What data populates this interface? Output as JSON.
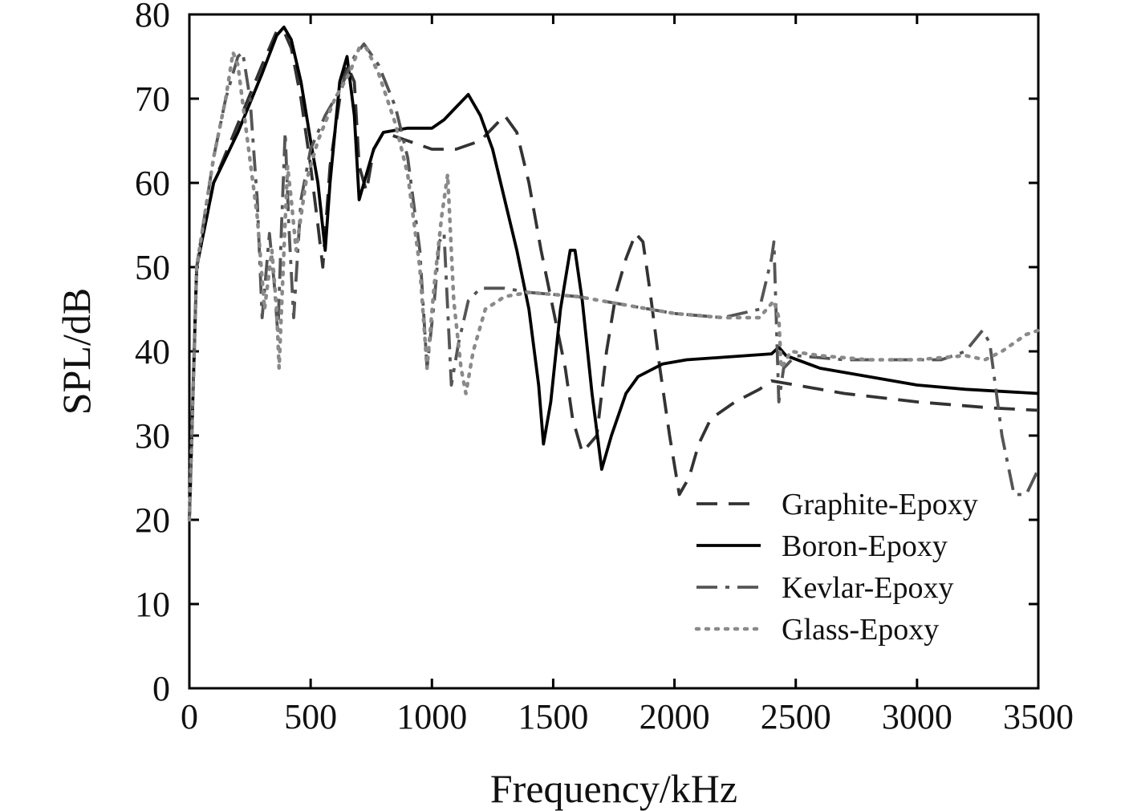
{
  "chart_data": {
    "type": "line",
    "title": "",
    "xlabel": "Frequency/kHz",
    "ylabel": "SPL/dB",
    "xlim": [
      0,
      3500
    ],
    "ylim": [
      0,
      80
    ],
    "xticks": [
      0,
      500,
      1000,
      1500,
      2000,
      2500,
      3000,
      3500
    ],
    "yticks": [
      0,
      10,
      20,
      30,
      40,
      50,
      60,
      70,
      80
    ],
    "grid": false,
    "legend_position": "bottom-right",
    "series": [
      {
        "name": "Graphite-Epoxy",
        "style": "dashed",
        "color": "#333333",
        "points": [
          [
            0,
            20
          ],
          [
            30,
            50
          ],
          [
            100,
            60
          ],
          [
            200,
            67
          ],
          [
            300,
            74
          ],
          [
            360,
            78
          ],
          [
            390,
            78
          ],
          [
            420,
            76
          ],
          [
            460,
            70
          ],
          [
            500,
            62
          ],
          [
            530,
            55
          ],
          [
            550,
            50
          ],
          [
            580,
            62
          ],
          [
            620,
            70
          ],
          [
            650,
            74
          ],
          [
            680,
            72
          ],
          [
            700,
            62
          ],
          [
            730,
            59
          ],
          [
            760,
            64
          ],
          [
            800,
            66
          ],
          [
            900,
            65
          ],
          [
            1000,
            64
          ],
          [
            1100,
            64
          ],
          [
            1200,
            65
          ],
          [
            1300,
            68
          ],
          [
            1350,
            66
          ],
          [
            1400,
            60
          ],
          [
            1450,
            52
          ],
          [
            1500,
            45
          ],
          [
            1550,
            38
          ],
          [
            1580,
            32
          ],
          [
            1620,
            28
          ],
          [
            1680,
            30
          ],
          [
            1720,
            40
          ],
          [
            1760,
            47
          ],
          [
            1800,
            51
          ],
          [
            1840,
            54
          ],
          [
            1870,
            53
          ],
          [
            1900,
            47
          ],
          [
            1940,
            38
          ],
          [
            1980,
            30
          ],
          [
            2020,
            23
          ],
          [
            2060,
            25
          ],
          [
            2100,
            29
          ],
          [
            2150,
            32
          ],
          [
            2250,
            34
          ],
          [
            2350,
            35.5
          ],
          [
            2400,
            36.5
          ],
          [
            2500,
            36
          ],
          [
            2700,
            35
          ],
          [
            3000,
            34
          ],
          [
            3300,
            33.3
          ],
          [
            3500,
            33
          ]
        ]
      },
      {
        "name": "Boron-Epoxy",
        "style": "solid",
        "color": "#000000",
        "points": [
          [
            0,
            20
          ],
          [
            30,
            50
          ],
          [
            100,
            60
          ],
          [
            200,
            66
          ],
          [
            300,
            73
          ],
          [
            360,
            77.5
          ],
          [
            390,
            78.5
          ],
          [
            420,
            77
          ],
          [
            460,
            72
          ],
          [
            500,
            65
          ],
          [
            530,
            60
          ],
          [
            560,
            52
          ],
          [
            580,
            60
          ],
          [
            620,
            72
          ],
          [
            650,
            75
          ],
          [
            680,
            68
          ],
          [
            700,
            58
          ],
          [
            720,
            60
          ],
          [
            760,
            64
          ],
          [
            800,
            66
          ],
          [
            900,
            66.5
          ],
          [
            1000,
            66.5
          ],
          [
            1050,
            67.5
          ],
          [
            1100,
            69
          ],
          [
            1150,
            70.5
          ],
          [
            1200,
            68
          ],
          [
            1250,
            64
          ],
          [
            1300,
            58
          ],
          [
            1350,
            52
          ],
          [
            1400,
            45
          ],
          [
            1440,
            36
          ],
          [
            1460,
            29
          ],
          [
            1490,
            34
          ],
          [
            1530,
            45
          ],
          [
            1570,
            52
          ],
          [
            1590,
            52
          ],
          [
            1620,
            46
          ],
          [
            1660,
            35
          ],
          [
            1700,
            26
          ],
          [
            1740,
            30
          ],
          [
            1800,
            35
          ],
          [
            1850,
            37
          ],
          [
            1950,
            38.5
          ],
          [
            2050,
            39
          ],
          [
            2200,
            39.3
          ],
          [
            2400,
            39.7
          ],
          [
            2430,
            40.5
          ],
          [
            2460,
            39.5
          ],
          [
            2600,
            38
          ],
          [
            2800,
            37
          ],
          [
            3000,
            36
          ],
          [
            3200,
            35.5
          ],
          [
            3500,
            35
          ]
        ]
      },
      {
        "name": "Kevlar-Epoxy",
        "style": "dash-dot",
        "color": "#555555",
        "points": [
          [
            0,
            20
          ],
          [
            30,
            50
          ],
          [
            100,
            63
          ],
          [
            150,
            70
          ],
          [
            200,
            75
          ],
          [
            220,
            75.5
          ],
          [
            250,
            70
          ],
          [
            280,
            58
          ],
          [
            300,
            44
          ],
          [
            330,
            54
          ],
          [
            350,
            48
          ],
          [
            365,
            42
          ],
          [
            380,
            55
          ],
          [
            395,
            66
          ],
          [
            410,
            55
          ],
          [
            430,
            44
          ],
          [
            460,
            58
          ],
          [
            500,
            64
          ],
          [
            560,
            68
          ],
          [
            620,
            71
          ],
          [
            680,
            75
          ],
          [
            720,
            76.5
          ],
          [
            780,
            74
          ],
          [
            850,
            69
          ],
          [
            900,
            63
          ],
          [
            950,
            52
          ],
          [
            980,
            38
          ],
          [
            1010,
            46
          ],
          [
            1030,
            53
          ],
          [
            1050,
            54
          ],
          [
            1080,
            36
          ],
          [
            1110,
            41
          ],
          [
            1150,
            46
          ],
          [
            1200,
            47.5
          ],
          [
            1300,
            47.5
          ],
          [
            1400,
            47
          ],
          [
            1600,
            46.5
          ],
          [
            1800,
            45.5
          ],
          [
            2000,
            44.5
          ],
          [
            2200,
            44
          ],
          [
            2350,
            45
          ],
          [
            2400,
            51
          ],
          [
            2410,
            53
          ],
          [
            2430,
            34
          ],
          [
            2450,
            38
          ],
          [
            2500,
            39.5
          ],
          [
            2700,
            39
          ],
          [
            2900,
            39
          ],
          [
            3100,
            39
          ],
          [
            3200,
            40
          ],
          [
            3270,
            42.5
          ],
          [
            3300,
            41
          ],
          [
            3350,
            30
          ],
          [
            3400,
            23
          ],
          [
            3450,
            23
          ],
          [
            3500,
            26
          ]
        ]
      },
      {
        "name": "Glass-Epoxy",
        "style": "dotted",
        "color": "#8a8a8a",
        "points": [
          [
            0,
            20
          ],
          [
            30,
            50
          ],
          [
            100,
            63
          ],
          [
            150,
            70
          ],
          [
            180,
            75.5
          ],
          [
            200,
            74
          ],
          [
            240,
            65
          ],
          [
            280,
            56
          ],
          [
            310,
            45
          ],
          [
            340,
            52
          ],
          [
            360,
            45
          ],
          [
            370,
            38
          ],
          [
            390,
            52
          ],
          [
            405,
            62
          ],
          [
            420,
            58
          ],
          [
            440,
            52
          ],
          [
            480,
            60
          ],
          [
            530,
            65
          ],
          [
            600,
            70
          ],
          [
            660,
            73
          ],
          [
            700,
            76
          ],
          [
            730,
            76
          ],
          [
            780,
            73
          ],
          [
            850,
            67
          ],
          [
            900,
            61
          ],
          [
            950,
            50
          ],
          [
            980,
            38
          ],
          [
            1010,
            48
          ],
          [
            1040,
            56
          ],
          [
            1065,
            61
          ],
          [
            1090,
            46
          ],
          [
            1120,
            38
          ],
          [
            1140,
            35
          ],
          [
            1170,
            40
          ],
          [
            1220,
            45
          ],
          [
            1300,
            46.5
          ],
          [
            1400,
            47
          ],
          [
            1600,
            46.5
          ],
          [
            1800,
            45.5
          ],
          [
            2000,
            44.5
          ],
          [
            2200,
            44
          ],
          [
            2350,
            44
          ],
          [
            2410,
            46
          ],
          [
            2430,
            44
          ],
          [
            2440,
            38
          ],
          [
            2480,
            40
          ],
          [
            2600,
            39.5
          ],
          [
            2800,
            39
          ],
          [
            3000,
            39
          ],
          [
            3200,
            39.5
          ],
          [
            3280,
            39
          ],
          [
            3350,
            40
          ],
          [
            3450,
            42
          ],
          [
            3500,
            42.5
          ]
        ]
      }
    ]
  }
}
